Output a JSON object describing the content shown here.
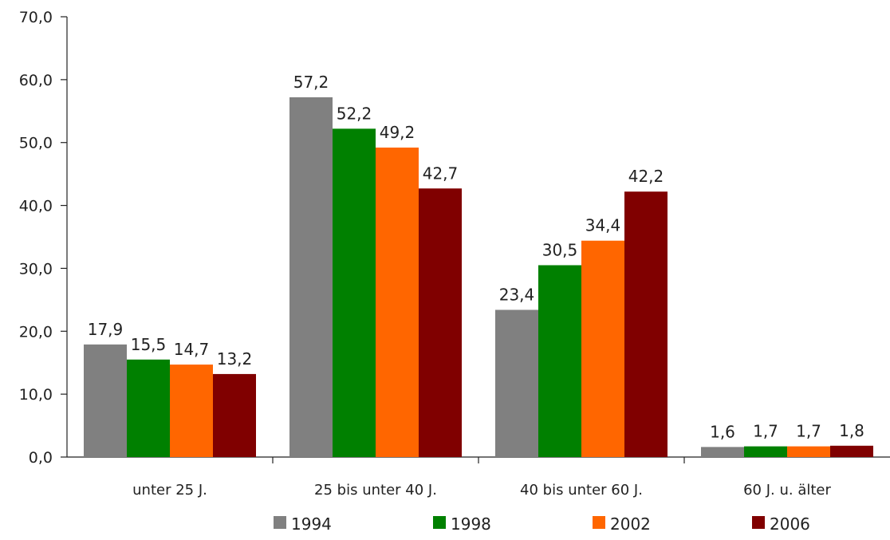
{
  "chart_data": {
    "type": "bar",
    "categories": [
      "unter 25 J.",
      "25 bis unter 40 J.",
      "40 bis unter 60 J.",
      "60 J. u. älter"
    ],
    "series": [
      {
        "name": "1994",
        "color": "#808080",
        "values": [
          17.9,
          57.2,
          23.4,
          1.6
        ],
        "labels": [
          "17,9",
          "57,2",
          "23,4",
          "1,6"
        ]
      },
      {
        "name": "1998",
        "color": "#008000",
        "values": [
          15.5,
          52.2,
          30.5,
          1.7
        ],
        "labels": [
          "15,5",
          "52,2",
          "30,5",
          "1,7"
        ]
      },
      {
        "name": "2002",
        "color": "#ff6600",
        "values": [
          14.7,
          49.2,
          34.4,
          1.7
        ],
        "labels": [
          "14,7",
          "49,2",
          "34,4",
          "1,7"
        ]
      },
      {
        "name": "2006",
        "color": "#800000",
        "values": [
          13.2,
          42.7,
          42.2,
          1.8
        ],
        "labels": [
          "13,2",
          "42,7",
          "42,2",
          "1,8"
        ]
      }
    ],
    "ylim": [
      0,
      70
    ],
    "yticks": [
      0,
      10,
      20,
      30,
      40,
      50,
      60,
      70
    ],
    "ytick_labels": [
      "0,0",
      "10,0",
      "20,0",
      "30,0",
      "40,0",
      "50,0",
      "60,0",
      "70,0"
    ],
    "grid": false,
    "legend": "bottom"
  }
}
